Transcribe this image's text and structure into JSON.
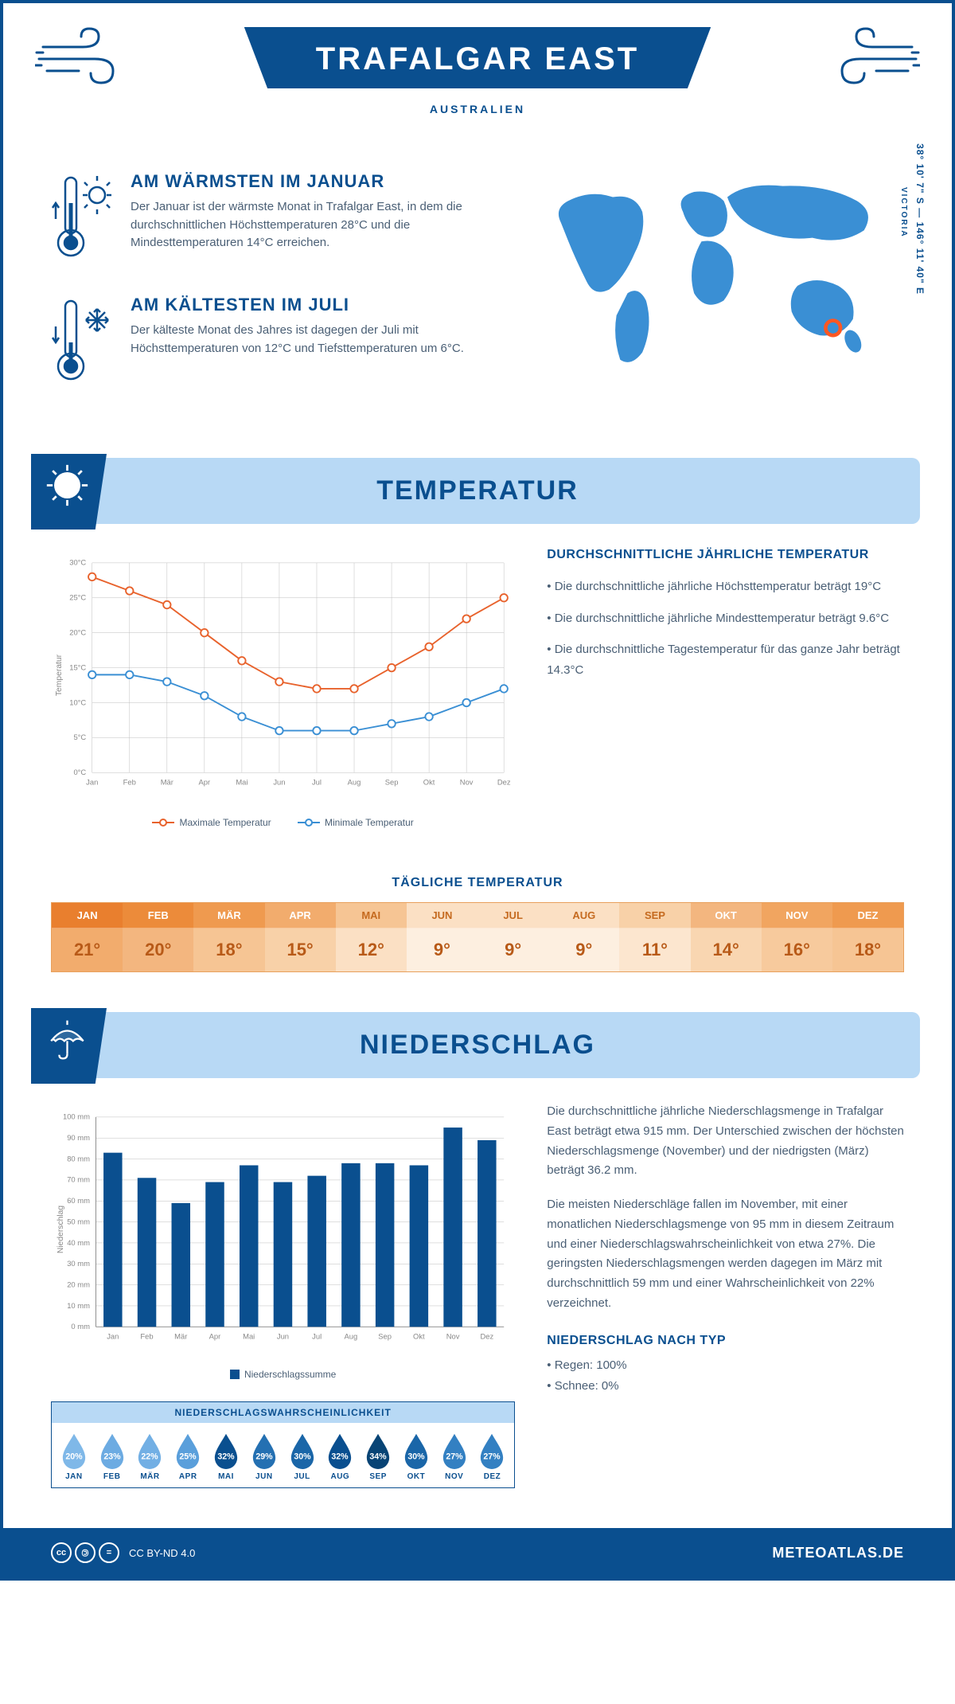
{
  "header": {
    "title": "TRAFALGAR EAST",
    "country": "AUSTRALIEN",
    "region": "VICTORIA",
    "coords": "38° 10' 7\" S — 146° 11' 40\" E"
  },
  "colors": {
    "brand_dark": "#0a4f8f",
    "brand_light": "#b8d9f5",
    "brand_mid": "#3a8fd4",
    "text_body": "#4a5f75",
    "series_max": "#e8622c",
    "series_min": "#3a8fd4",
    "bar_fill": "#0a4f8f",
    "grid": "#bbbbbb",
    "marker_ring": "#ff5722"
  },
  "facts": {
    "warm": {
      "title": "AM WÄRMSTEN IM JANUAR",
      "text": "Der Januar ist der wärmste Monat in Trafalgar East, in dem die durchschnittlichen Höchsttemperaturen 28°C und die Mindesttemperaturen 14°C erreichen."
    },
    "cold": {
      "title": "AM KÄLTESTEN IM JULI",
      "text": "Der kälteste Monat des Jahres ist dagegen der Juli mit Höchsttemperaturen von 12°C und Tiefsttemperaturen um 6°C."
    }
  },
  "months": [
    "Jan",
    "Feb",
    "Mär",
    "Apr",
    "Mai",
    "Jun",
    "Jul",
    "Aug",
    "Sep",
    "Okt",
    "Nov",
    "Dez"
  ],
  "months_upper": [
    "JAN",
    "FEB",
    "MÄR",
    "APR",
    "MAI",
    "JUN",
    "JUL",
    "AUG",
    "SEP",
    "OKT",
    "NOV",
    "DEZ"
  ],
  "temperature": {
    "section_title": "TEMPERATUR",
    "chart": {
      "type": "line",
      "ylabel": "Temperatur",
      "y_min": 0,
      "y_max": 30,
      "y_step": 5,
      "y_unit": "°C",
      "series": [
        {
          "name": "Maximale Temperatur",
          "color_key": "series_max",
          "values": [
            28,
            26,
            24,
            20,
            16,
            13,
            12,
            12,
            15,
            18,
            22,
            25
          ]
        },
        {
          "name": "Minimale Temperatur",
          "color_key": "series_min",
          "values": [
            14,
            14,
            13,
            11,
            8,
            6,
            6,
            6,
            7,
            8,
            10,
            12
          ]
        }
      ],
      "label_fontsize": 10,
      "marker_style": "circle",
      "marker_size": 5,
      "line_width": 2,
      "grid_color": "#bbbbbb",
      "background_color": "#ffffff"
    },
    "legend_max": "Maximale Temperatur",
    "legend_min": "Minimale Temperatur",
    "desc": {
      "title": "DURCHSCHNITTLICHE JÄHRLICHE TEMPERATUR",
      "b1": "• Die durchschnittliche jährliche Höchsttemperatur beträgt 19°C",
      "b2": "• Die durchschnittliche jährliche Mindesttemperatur beträgt 9.6°C",
      "b3": "• Die durchschnittliche Tagestemperatur für das ganze Jahr beträgt 14.3°C"
    },
    "daily": {
      "title": "TÄGLICHE TEMPERATUR",
      "values": [
        "21°",
        "20°",
        "18°",
        "15°",
        "12°",
        "9°",
        "9°",
        "9°",
        "11°",
        "14°",
        "16°",
        "18°"
      ],
      "head_colors": [
        "#e97f2e",
        "#ec8b3a",
        "#ef9a4f",
        "#f2ac6d",
        "#f6c594",
        "#fbe0c4",
        "#fbe0c4",
        "#fbe0c4",
        "#f8d1a8",
        "#f3b67f",
        "#f1a560",
        "#ef9a4f"
      ],
      "head_text_colors": [
        "#ffffff",
        "#ffffff",
        "#ffffff",
        "#ffffff",
        "#c56a1f",
        "#c56a1f",
        "#c56a1f",
        "#c56a1f",
        "#c56a1f",
        "#ffffff",
        "#ffffff",
        "#ffffff"
      ],
      "val_bg_colors": [
        "#f2ac6d",
        "#f3b67f",
        "#f6c594",
        "#f8d1a8",
        "#fbe0c4",
        "#fdefe0",
        "#fdefe0",
        "#fdefe0",
        "#fce6cf",
        "#f9d6b1",
        "#f7ca9d",
        "#f6c594"
      ],
      "val_text_color": "#b85a18"
    }
  },
  "precipitation": {
    "section_title": "NIEDERSCHLAG",
    "chart": {
      "type": "bar",
      "ylabel": "Niederschlag",
      "y_min": 0,
      "y_max": 100,
      "y_step": 10,
      "y_unit": " mm",
      "values": [
        83,
        71,
        59,
        69,
        77,
        69,
        72,
        78,
        78,
        77,
        95,
        89
      ],
      "bar_color": "#0a4f8f",
      "bar_width": 0.55,
      "grid_color": "#bbbbbb",
      "background_color": "#ffffff",
      "legend": "Niederschlagssumme"
    },
    "para1": "Die durchschnittliche jährliche Niederschlagsmenge in Trafalgar East beträgt etwa 915 mm. Der Unterschied zwischen der höchsten Niederschlagsmenge (November) und der niedrigsten (März) beträgt 36.2 mm.",
    "para2": "Die meisten Niederschläge fallen im November, mit einer monatlichen Niederschlagsmenge von 95 mm in diesem Zeitraum und einer Niederschlagswahrscheinlichkeit von etwa 27%. Die geringsten Niederschlagsmengen werden dagegen im März mit durchschnittlich 59 mm und einer Wahrscheinlichkeit von 22% verzeichnet.",
    "by_type_title": "NIEDERSCHLAG NACH TYP",
    "by_type_1": "• Regen: 100%",
    "by_type_2": "• Schnee: 0%",
    "probability": {
      "title": "NIEDERSCHLAGSWAHRSCHEINLICHKEIT",
      "values": [
        "20%",
        "23%",
        "22%",
        "25%",
        "32%",
        "29%",
        "30%",
        "32%",
        "34%",
        "30%",
        "27%",
        "27%"
      ],
      "colors": [
        "#7fb8e8",
        "#6cabe2",
        "#72afe4",
        "#5a9fdb",
        "#0a4f8f",
        "#2470b2",
        "#1a66a8",
        "#0a4f8f",
        "#084475",
        "#1a66a8",
        "#3380c2",
        "#3380c2"
      ]
    }
  },
  "footer": {
    "license": "CC BY-ND 4.0",
    "site": "METEOATLAS.DE"
  }
}
